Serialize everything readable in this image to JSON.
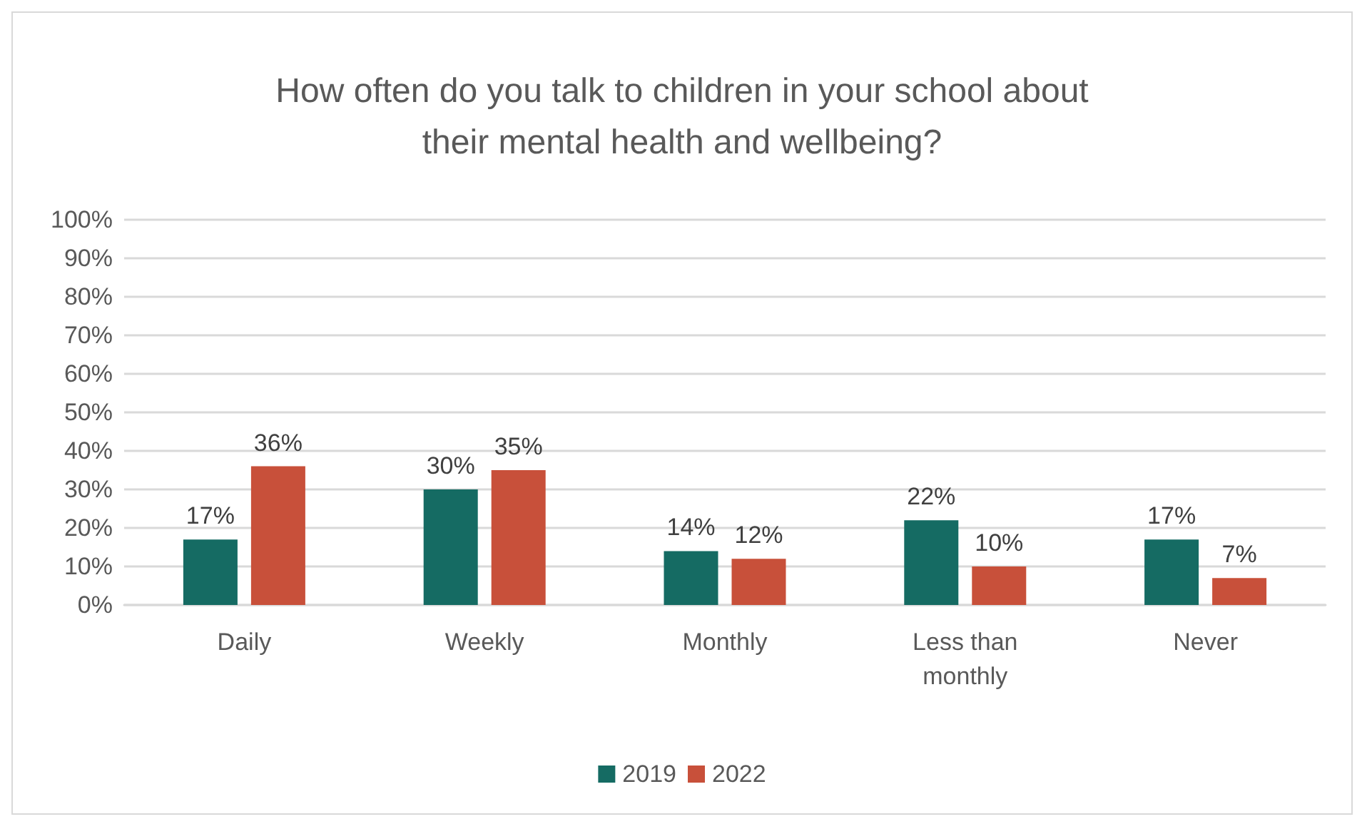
{
  "chart_data": {
    "type": "bar",
    "title": "How often do you talk to children in your school about\ntheir mental health and wellbeing?",
    "categories": [
      "Daily",
      "Weekly",
      "Monthly",
      "Less than\nmonthly",
      "Never"
    ],
    "series": [
      {
        "name": "2019",
        "color": "#156b63",
        "values": [
          17,
          30,
          14,
          22,
          17
        ],
        "value_labels": [
          "17%",
          "30%",
          "14%",
          "22%",
          "17%"
        ]
      },
      {
        "name": "2022",
        "color": "#c8503a",
        "values": [
          36,
          35,
          12,
          10,
          7
        ],
        "value_labels": [
          "36%",
          "35%",
          "12%",
          "10%",
          "7%"
        ]
      }
    ],
    "ylim": [
      0,
      100
    ],
    "yticks": [
      {
        "value": 0,
        "label": "0%"
      },
      {
        "value": 10,
        "label": "10%"
      },
      {
        "value": 20,
        "label": "20%"
      },
      {
        "value": 30,
        "label": "30%"
      },
      {
        "value": 40,
        "label": "40%"
      },
      {
        "value": 50,
        "label": "50%"
      },
      {
        "value": 60,
        "label": "60%"
      },
      {
        "value": 70,
        "label": "70%"
      },
      {
        "value": 80,
        "label": "80%"
      },
      {
        "value": 90,
        "label": "90%"
      },
      {
        "value": 100,
        "label": "100%"
      }
    ],
    "grid": "y",
    "legend": "bottom"
  }
}
